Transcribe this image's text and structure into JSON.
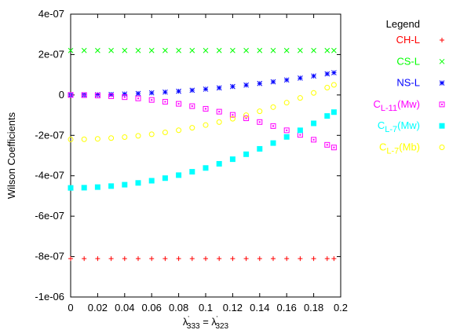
{
  "chart_data": {
    "type": "scatter",
    "title": "",
    "xlabel": {
      "main": "λ",
      "sub1": "333",
      "eq": " = ",
      "main2": "λ",
      "sub2": "323",
      "prime": "'"
    },
    "ylabel": "Wilson Coefficients",
    "xlim": [
      0,
      0.2
    ],
    "ylim": [
      -1e-06,
      4e-07
    ],
    "x_ticks": [
      0,
      0.02,
      0.04,
      0.06,
      0.08,
      0.1,
      0.12,
      0.14,
      0.16,
      0.18,
      0.2
    ],
    "x_tick_labels": [
      "0",
      "0.02",
      "0.04",
      "0.06",
      "0.08",
      "0.1",
      "0.12",
      "0.14",
      "0.16",
      "0.18",
      "0.2"
    ],
    "y_ticks": [
      4e-07,
      2e-07,
      0,
      -2e-07,
      -4e-07,
      -6e-07,
      -8e-07,
      -1e-06
    ],
    "y_tick_labels": [
      "4e-07",
      "2e-07",
      "0",
      "-2e-07",
      "-4e-07",
      "-6e-07",
      "-8e-07",
      "-1e-06"
    ],
    "grid": false,
    "legend": {
      "title": "Legend",
      "placement": "outside-right"
    },
    "value_scale": 1e-07,
    "x": [
      0,
      0.01,
      0.02,
      0.03,
      0.04,
      0.05,
      0.06,
      0.07,
      0.08,
      0.09,
      0.1,
      0.11,
      0.12,
      0.13,
      0.14,
      0.15,
      0.16,
      0.17,
      0.18,
      0.19,
      0.195
    ],
    "series": [
      {
        "name": "CH-L",
        "label": {
          "main": "CH-L",
          "sub": "",
          "suffix": ""
        },
        "color": "#ff0000",
        "marker": "plus",
        "values": [
          -8.1,
          -8.1,
          -8.1,
          -8.1,
          -8.1,
          -8.1,
          -8.1,
          -8.1,
          -8.1,
          -8.1,
          -8.1,
          -8.1,
          -8.1,
          -8.1,
          -8.1,
          -8.1,
          -8.1,
          -8.1,
          -8.1,
          -8.1,
          -8.1
        ]
      },
      {
        "name": "CS-L",
        "label": {
          "main": "CS-L",
          "sub": "",
          "suffix": ""
        },
        "color": "#00ff00",
        "marker": "cross",
        "values": [
          2.2,
          2.2,
          2.2,
          2.2,
          2.2,
          2.2,
          2.2,
          2.2,
          2.2,
          2.2,
          2.2,
          2.2,
          2.2,
          2.2,
          2.2,
          2.2,
          2.2,
          2.2,
          2.2,
          2.2,
          2.2
        ]
      },
      {
        "name": "NS-L",
        "label": {
          "main": "NS-L",
          "sub": "",
          "suffix": ""
        },
        "color": "#0000ff",
        "marker": "star",
        "values": [
          0,
          0.003,
          0.012,
          0.026,
          0.046,
          0.072,
          0.104,
          0.142,
          0.185,
          0.234,
          0.289,
          0.35,
          0.417,
          0.489,
          0.567,
          0.651,
          0.741,
          0.836,
          0.937,
          1.044,
          1.1
        ]
      },
      {
        "name": "C_L-11(Mw)",
        "label": {
          "main": "C",
          "sub": "L-11",
          "suffix": "(Mw)"
        },
        "color": "#ff00ff",
        "marker": "box",
        "values": [
          0,
          -0.007,
          -0.027,
          -0.062,
          -0.109,
          -0.171,
          -0.246,
          -0.335,
          -0.438,
          -0.554,
          -0.684,
          -0.827,
          -0.985,
          -1.155,
          -1.34,
          -1.538,
          -1.75,
          -1.976,
          -2.215,
          -2.468,
          -2.6
        ]
      },
      {
        "name": "C_L-7(Mw)",
        "label": {
          "main": "C",
          "sub": "L-7",
          "suffix": "(Mw)"
        },
        "color": "#00ffff",
        "marker": "filled-box",
        "values": [
          -4.6,
          -4.59,
          -4.561,
          -4.511,
          -4.442,
          -4.353,
          -4.245,
          -4.117,
          -3.969,
          -3.801,
          -3.614,
          -3.407,
          -3.18,
          -2.934,
          -2.667,
          -2.381,
          -2.076,
          -1.75,
          -1.405,
          -1.04,
          -0.85
        ]
      },
      {
        "name": "C_L-7(Mb)",
        "label": {
          "main": "C",
          "sub": "L-7",
          "suffix": "(Mb)"
        },
        "color": "#ffff00",
        "marker": "circle",
        "values": [
          -2.2,
          -2.193,
          -2.172,
          -2.136,
          -2.086,
          -2.022,
          -1.944,
          -1.852,
          -1.746,
          -1.625,
          -1.49,
          -1.341,
          -1.178,
          -1.0,
          -0.808,
          -0.602,
          -0.382,
          -0.148,
          0.101,
          0.363,
          0.5
        ]
      }
    ]
  }
}
